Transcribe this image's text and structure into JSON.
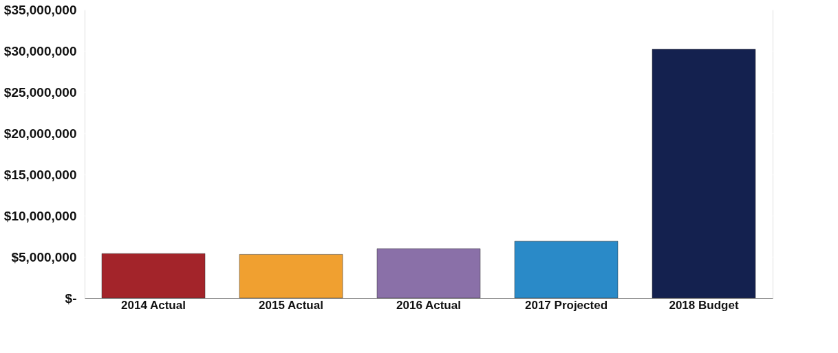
{
  "chart_data": {
    "type": "bar",
    "categories": [
      "2014 Actual",
      "2015 Actual",
      "2016 Actual",
      "2017 Projected",
      "2018 Budget"
    ],
    "values": [
      5400000,
      5300000,
      6000000,
      6900000,
      30200000
    ],
    "colors": [
      "#a3242a",
      "#f0a030",
      "#8a70a8",
      "#2a8ac8",
      "#14214f"
    ],
    "ylim": [
      0,
      35000000
    ],
    "yticks": [
      {
        "value": 0,
        "label": "$-"
      },
      {
        "value": 5000000,
        "label": "$5,000,000"
      },
      {
        "value": 10000000,
        "label": "$10,000,000"
      },
      {
        "value": 15000000,
        "label": "$15,000,000"
      },
      {
        "value": 20000000,
        "label": "$20,000,000"
      },
      {
        "value": 25000000,
        "label": "$25,000,000"
      },
      {
        "value": 30000000,
        "label": "$30,000,000"
      },
      {
        "value": 35000000,
        "label": "$35,000,000"
      }
    ],
    "grid": "y"
  }
}
